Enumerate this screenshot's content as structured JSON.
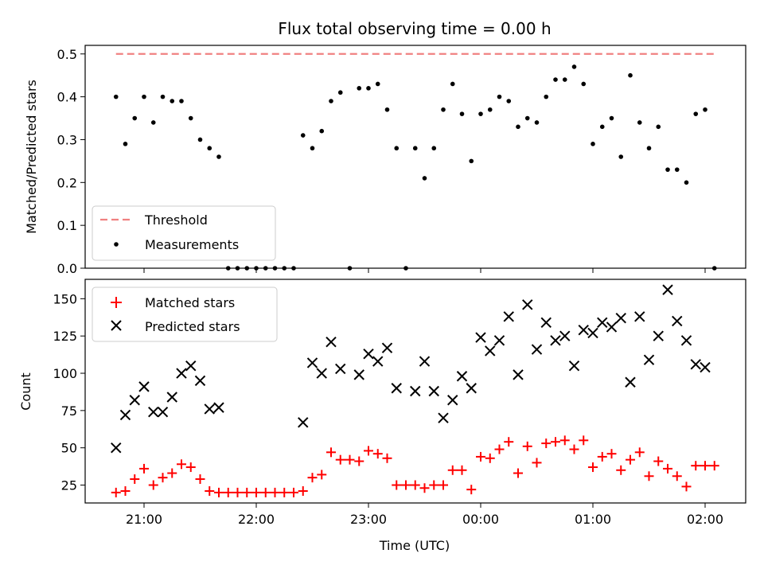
{
  "chart_data": [
    {
      "type": "scatter",
      "title": "Flux total observing time = 0.00 h",
      "xlabel": "",
      "ylabel": "Matched/Predicted stars",
      "ylim": [
        0,
        0.52
      ],
      "yticks": [
        "0.0",
        "0.1",
        "0.2",
        "0.3",
        "0.4",
        "0.5"
      ],
      "legend": {
        "position": "lower-left",
        "entries": [
          "Threshold",
          "Measurements"
        ]
      },
      "threshold": {
        "name": "Threshold",
        "value": 0.5,
        "x_start": "20:45",
        "x_end": "02:05",
        "color": "#f08080"
      },
      "series": [
        {
          "name": "Measurements",
          "color": "#000000",
          "x": [
            "20:45",
            "20:50",
            "20:55",
            "21:00",
            "21:05",
            "21:10",
            "21:15",
            "21:20",
            "21:25",
            "21:30",
            "21:35",
            "21:40",
            "21:45",
            "21:50",
            "21:55",
            "22:00",
            "22:05",
            "22:10",
            "22:15",
            "22:20",
            "22:25",
            "22:30",
            "22:35",
            "22:40",
            "22:45",
            "22:50",
            "22:55",
            "23:00",
            "23:05",
            "23:10",
            "23:15",
            "23:20",
            "23:25",
            "23:30",
            "23:35",
            "23:40",
            "23:45",
            "23:50",
            "23:55",
            "00:00",
            "00:05",
            "00:10",
            "00:15",
            "00:20",
            "00:25",
            "00:30",
            "00:35",
            "00:40",
            "00:45",
            "00:50",
            "00:55",
            "01:00",
            "01:05",
            "01:10",
            "01:15",
            "01:20",
            "01:25",
            "01:30",
            "01:35",
            "01:40",
            "01:45",
            "01:50",
            "01:55",
            "02:00",
            "02:05"
          ],
          "y": [
            0.4,
            0.29,
            0.35,
            0.4,
            0.34,
            0.4,
            0.39,
            0.39,
            0.35,
            0.3,
            0.28,
            0.26,
            0.0,
            0.0,
            0.0,
            0.0,
            0.0,
            0.0,
            0.0,
            0.0,
            0.31,
            0.28,
            0.32,
            0.39,
            0.41,
            0.0,
            0.42,
            0.42,
            0.43,
            0.37,
            0.28,
            0.0,
            0.28,
            0.21,
            0.28,
            0.37,
            0.43,
            0.36,
            0.25,
            0.36,
            0.37,
            0.4,
            0.39,
            0.33,
            0.35,
            0.34,
            0.4,
            0.44,
            0.44,
            0.47,
            0.43,
            0.29,
            0.33,
            0.35,
            0.26,
            0.45,
            0.34,
            0.28,
            0.33,
            0.23,
            0.23,
            0.2,
            0.36,
            0.37,
            0.0
          ]
        }
      ]
    },
    {
      "type": "scatter",
      "title": "",
      "xlabel": "Time (UTC)",
      "ylabel": "Count",
      "ylim": [
        13,
        163
      ],
      "yticks": [
        "25",
        "50",
        "75",
        "100",
        "125",
        "150"
      ],
      "xticks": [
        "21:00",
        "22:00",
        "23:00",
        "00:00",
        "01:00",
        "02:00"
      ],
      "legend": {
        "position": "upper-left",
        "entries": [
          "Matched stars",
          "Predicted stars"
        ]
      },
      "series": [
        {
          "name": "Matched stars",
          "marker": "plus",
          "color": "#ff0000",
          "x": [
            "20:45",
            "20:50",
            "20:55",
            "21:00",
            "21:05",
            "21:10",
            "21:15",
            "21:20",
            "21:25",
            "21:30",
            "21:35",
            "21:40",
            "21:45",
            "21:50",
            "21:55",
            "22:00",
            "22:05",
            "22:10",
            "22:15",
            "22:20",
            "22:25",
            "22:30",
            "22:35",
            "22:40",
            "22:45",
            "22:50",
            "22:55",
            "23:00",
            "23:05",
            "23:10",
            "23:15",
            "23:20",
            "23:25",
            "23:30",
            "23:35",
            "23:40",
            "23:45",
            "23:50",
            "23:55",
            "00:00",
            "00:05",
            "00:10",
            "00:15",
            "00:20",
            "00:25",
            "00:30",
            "00:35",
            "00:40",
            "00:45",
            "00:50",
            "00:55",
            "01:00",
            "01:05",
            "01:10",
            "01:15",
            "01:20",
            "01:25",
            "01:30",
            "01:35",
            "01:40",
            "01:45",
            "01:50",
            "01:55",
            "02:00",
            "02:05"
          ],
          "y": [
            20,
            21,
            29,
            36,
            25,
            30,
            33,
            39,
            37,
            29,
            21,
            20,
            20,
            20,
            20,
            20,
            20,
            20,
            20,
            20,
            21,
            30,
            32,
            47,
            42,
            42,
            41,
            48,
            46,
            43,
            25,
            25,
            25,
            23,
            25,
            25,
            35,
            35,
            22,
            44,
            43,
            49,
            54,
            33,
            51,
            40,
            53,
            54,
            55,
            49,
            55,
            37,
            44,
            46,
            35,
            42,
            47,
            31,
            41,
            36,
            31,
            24,
            38,
            38,
            38
          ]
        },
        {
          "name": "Predicted stars",
          "marker": "x",
          "color": "#000000",
          "x": [
            "20:45",
            "20:50",
            "20:55",
            "21:00",
            "21:05",
            "21:10",
            "21:15",
            "21:20",
            "21:25",
            "21:30",
            "21:35",
            "21:40",
            "22:25",
            "22:30",
            "22:35",
            "22:40",
            "22:45",
            "22:55",
            "23:00",
            "23:05",
            "23:10",
            "23:15",
            "23:25",
            "23:30",
            "23:35",
            "23:40",
            "23:45",
            "23:50",
            "23:55",
            "00:00",
            "00:05",
            "00:10",
            "00:15",
            "00:20",
            "00:25",
            "00:30",
            "00:35",
            "00:40",
            "00:45",
            "00:50",
            "00:55",
            "01:00",
            "01:05",
            "01:10",
            "01:15",
            "01:20",
            "01:25",
            "01:30",
            "01:35",
            "01:40",
            "01:45",
            "01:50",
            "01:55",
            "02:00"
          ],
          "y": [
            50,
            72,
            82,
            91,
            74,
            74,
            84,
            100,
            105,
            95,
            76,
            77,
            67,
            107,
            100,
            121,
            103,
            99,
            113,
            108,
            117,
            90,
            88,
            108,
            88,
            70,
            82,
            98,
            90,
            124,
            115,
            122,
            138,
            99,
            146,
            116,
            134,
            122,
            125,
            105,
            129,
            127,
            134,
            131,
            137,
            94,
            138,
            109,
            125,
            156,
            135,
            122,
            106,
            104
          ]
        }
      ]
    }
  ]
}
